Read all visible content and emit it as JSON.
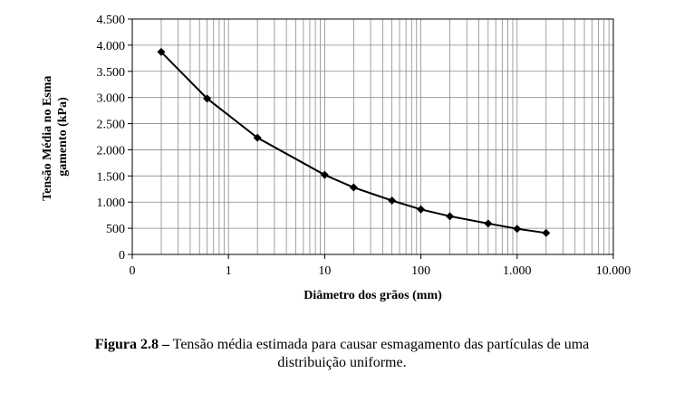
{
  "chart_data": {
    "type": "line",
    "xlabel": "Diâmetro dos grãos (mm)",
    "ylabel_lines": [
      "Tensão Média  no Esma",
      "gamento (kPa)"
    ],
    "x_scale": "log",
    "xlim": [
      0.1,
      10000
    ],
    "ylim": [
      0,
      4500
    ],
    "x_ticks": [
      {
        "value": 0.1,
        "label": "0"
      },
      {
        "value": 1,
        "label": "1"
      },
      {
        "value": 10,
        "label": "10"
      },
      {
        "value": 100,
        "label": "100"
      },
      {
        "value": 1000,
        "label": "1.000"
      },
      {
        "value": 10000,
        "label": "10.000"
      }
    ],
    "y_ticks": [
      {
        "value": 0,
        "label": "0"
      },
      {
        "value": 500,
        "label": "500"
      },
      {
        "value": 1000,
        "label": "1.000"
      },
      {
        "value": 1500,
        "label": "1.500"
      },
      {
        "value": 2000,
        "label": "2.000"
      },
      {
        "value": 2500,
        "label": "2.500"
      },
      {
        "value": 3000,
        "label": "3.000"
      },
      {
        "value": 3500,
        "label": "3.500"
      },
      {
        "value": 4000,
        "label": "4.000"
      },
      {
        "value": 4500,
        "label": "4.500"
      }
    ],
    "grid": true,
    "marker": "diamond",
    "series": [
      {
        "x": [
          0.2,
          0.6,
          2,
          10,
          20,
          50,
          100,
          200,
          500,
          1000,
          2000
        ],
        "y": [
          3870,
          2980,
          2230,
          1520,
          1280,
          1030,
          860,
          730,
          590,
          490,
          410
        ]
      }
    ]
  },
  "caption": {
    "label": "Figura 2.8 –",
    "line1": " Tensão média estimada para causar esmagamento das partículas de uma",
    "line2": "distribuição uniforme."
  }
}
